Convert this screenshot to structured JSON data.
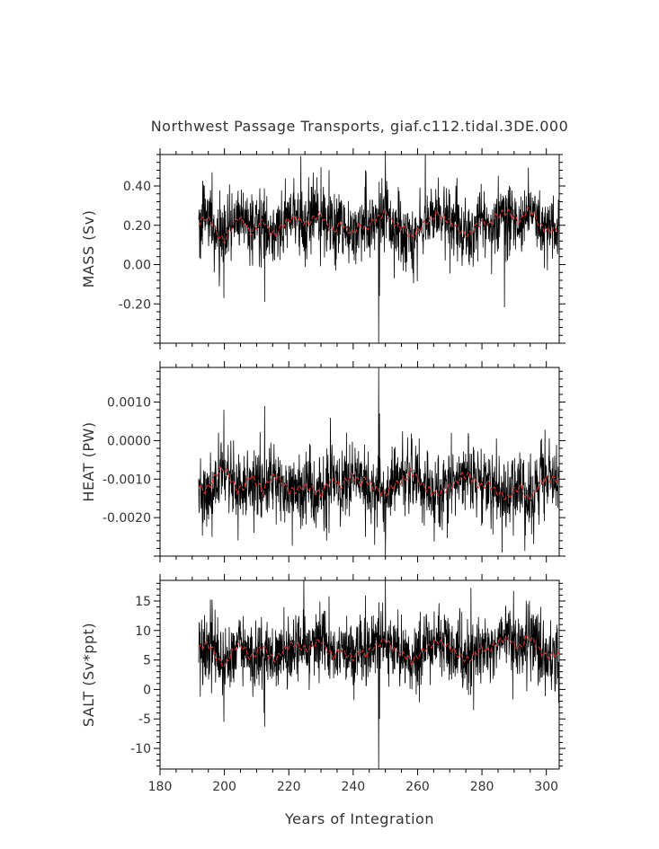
{
  "figure": {
    "title": "Northwest Passage Transports, giaf.c112.tidal.3DE.000",
    "xlabel": "Years of Integration"
  },
  "chart_data": [
    {
      "type": "line",
      "panel": "mass",
      "title": "Northwest Passage Transports, giaf.c112.tidal.3DE.000",
      "ylabel": "MASS (Sv)",
      "xlim": [
        180,
        304
      ],
      "ylim": [
        -0.4,
        0.56
      ],
      "x_ticks": [
        180,
        200,
        220,
        240,
        260,
        280,
        300
      ],
      "y_ticks": [
        -0.2,
        0.0,
        0.2,
        0.4
      ],
      "y_tick_labels": [
        "-0.20",
        "0.00",
        "0.20",
        "0.40"
      ],
      "x_start": 192,
      "x_end": 304,
      "spike_x": 248,
      "series": [
        {
          "color": "#000000",
          "role": "monthly",
          "mean": 0.21,
          "spread": 0.085,
          "extremes": [
            {
              "x": 247.9,
              "y": -0.4
            },
            {
              "x": 250.0,
              "y": 0.56
            },
            {
              "x": 199.8,
              "y": -0.17
            },
            {
              "x": 212.5,
              "y": -0.19
            },
            {
              "x": 248.2,
              "y": -0.16
            },
            {
              "x": 196.2,
              "y": 0.47
            },
            {
              "x": 232.5,
              "y": 0.48
            },
            {
              "x": 243.8,
              "y": 0.48
            }
          ]
        },
        {
          "color": "#e03030",
          "role": "annual-mean",
          "x": [
            192,
            194,
            196,
            198,
            200,
            202,
            204,
            206,
            208,
            210,
            212,
            214,
            216,
            218,
            220,
            222,
            224,
            226,
            228,
            230,
            232,
            234,
            236,
            238,
            240,
            242,
            244,
            246,
            248,
            250,
            252,
            254,
            256,
            258,
            260,
            262,
            264,
            266,
            268,
            270,
            272,
            274,
            276,
            278,
            280,
            282,
            284,
            286,
            288,
            290,
            292,
            294,
            296,
            298,
            300,
            302,
            304
          ],
          "y": [
            0.21,
            0.24,
            0.22,
            0.15,
            0.12,
            0.18,
            0.24,
            0.22,
            0.16,
            0.19,
            0.23,
            0.17,
            0.15,
            0.2,
            0.23,
            0.24,
            0.22,
            0.21,
            0.24,
            0.26,
            0.2,
            0.17,
            0.21,
            0.18,
            0.16,
            0.2,
            0.18,
            0.22,
            0.24,
            0.27,
            0.22,
            0.2,
            0.18,
            0.14,
            0.17,
            0.21,
            0.23,
            0.26,
            0.24,
            0.22,
            0.19,
            0.16,
            0.15,
            0.19,
            0.22,
            0.2,
            0.24,
            0.26,
            0.27,
            0.24,
            0.22,
            0.28,
            0.26,
            0.2,
            0.17,
            0.18,
            0.18
          ]
        }
      ]
    },
    {
      "type": "line",
      "panel": "heat",
      "ylabel": "HEAT (PW)",
      "xlim": [
        180,
        304
      ],
      "ylim": [
        -0.003,
        0.0019
      ],
      "x_ticks": [
        180,
        200,
        220,
        240,
        260,
        280,
        300
      ],
      "y_ticks": [
        -0.002,
        -0.001,
        0.0,
        0.001
      ],
      "y_tick_labels": [
        "-0.0020",
        "-0.0010",
        "0.0000",
        "0.0010"
      ],
      "x_start": 192,
      "x_end": 304,
      "spike_x": 248,
      "series": [
        {
          "color": "#000000",
          "role": "monthly",
          "mean": -0.00112,
          "spread": 0.00048,
          "extremes": [
            {
              "x": 247.9,
              "y": 0.0019
            },
            {
              "x": 250.0,
              "y": -0.003
            },
            {
              "x": 199.8,
              "y": 0.0008
            },
            {
              "x": 212.5,
              "y": 0.0009
            },
            {
              "x": 248.2,
              "y": 0.0007
            },
            {
              "x": 196.2,
              "y": -0.0025
            },
            {
              "x": 232.5,
              "y": -0.0024
            },
            {
              "x": 243.8,
              "y": -0.0025
            }
          ]
        },
        {
          "color": "#e03030",
          "role": "annual-mean",
          "x": [
            192,
            194,
            196,
            198,
            200,
            202,
            204,
            206,
            208,
            210,
            212,
            214,
            216,
            218,
            220,
            222,
            224,
            226,
            228,
            230,
            232,
            234,
            236,
            238,
            240,
            242,
            244,
            246,
            248,
            250,
            252,
            254,
            256,
            258,
            260,
            262,
            264,
            266,
            268,
            270,
            272,
            274,
            276,
            278,
            280,
            282,
            284,
            286,
            288,
            290,
            292,
            294,
            296,
            298,
            300,
            302,
            304
          ],
          "y": [
            -0.0012,
            -0.0013,
            -0.0011,
            -0.0008,
            -0.0007,
            -0.001,
            -0.0013,
            -0.0012,
            -0.0009,
            -0.0011,
            -0.0013,
            -0.001,
            -0.0009,
            -0.0011,
            -0.0013,
            -0.0013,
            -0.0012,
            -0.0012,
            -0.0013,
            -0.0014,
            -0.0011,
            -0.001,
            -0.0012,
            -0.001,
            -0.0009,
            -0.0011,
            -0.001,
            -0.0012,
            -0.0013,
            -0.0014,
            -0.0012,
            -0.0011,
            -0.001,
            -0.0008,
            -0.001,
            -0.0012,
            -0.0013,
            -0.0014,
            -0.0013,
            -0.0012,
            -0.0011,
            -0.0009,
            -0.0009,
            -0.0011,
            -0.0012,
            -0.0011,
            -0.0013,
            -0.0014,
            -0.0015,
            -0.0013,
            -0.0012,
            -0.0015,
            -0.0014,
            -0.0011,
            -0.001,
            -0.001,
            -0.001
          ]
        }
      ]
    },
    {
      "type": "line",
      "panel": "salt",
      "ylabel": "SALT (Sv*ppt)",
      "xlim": [
        180,
        304
      ],
      "ylim": [
        -13.5,
        18.5
      ],
      "x_ticks": [
        180,
        200,
        220,
        240,
        260,
        280,
        300
      ],
      "x_tick_labels": [
        "180",
        "200",
        "220",
        "240",
        "260",
        "280",
        "300"
      ],
      "y_ticks": [
        -10,
        -5,
        0,
        5,
        10,
        15
      ],
      "y_tick_labels": [
        "-10",
        "-5",
        "0",
        "5",
        "10",
        "15"
      ],
      "x_start": 192,
      "x_end": 304,
      "spike_x": 248,
      "series": [
        {
          "color": "#000000",
          "role": "monthly",
          "mean": 6.7,
          "spread": 2.8,
          "extremes": [
            {
              "x": 247.9,
              "y": -13.5
            },
            {
              "x": 250.0,
              "y": 18.5
            },
            {
              "x": 199.8,
              "y": -5.5
            },
            {
              "x": 212.5,
              "y": -6.3
            },
            {
              "x": 248.2,
              "y": -5.0
            },
            {
              "x": 196.2,
              "y": 15.2
            },
            {
              "x": 232.5,
              "y": 15.8
            },
            {
              "x": 243.8,
              "y": 15.9
            }
          ]
        },
        {
          "color": "#e03030",
          "role": "annual-mean",
          "x": [
            192,
            194,
            196,
            198,
            200,
            202,
            204,
            206,
            208,
            210,
            212,
            214,
            216,
            218,
            220,
            222,
            224,
            226,
            228,
            230,
            232,
            234,
            236,
            238,
            240,
            242,
            244,
            246,
            248,
            250,
            252,
            254,
            256,
            258,
            260,
            262,
            264,
            266,
            268,
            270,
            272,
            274,
            276,
            278,
            280,
            282,
            284,
            286,
            288,
            290,
            292,
            294,
            296,
            298,
            300,
            302,
            304
          ],
          "y": [
            6.8,
            7.7,
            7.1,
            5.0,
            4.0,
            5.9,
            7.7,
            7.1,
            5.3,
            6.2,
            7.4,
            5.6,
            5.0,
            6.5,
            7.4,
            7.7,
            7.1,
            6.8,
            7.7,
            8.3,
            6.5,
            5.6,
            6.8,
            5.9,
            5.3,
            6.5,
            5.9,
            7.1,
            7.7,
            8.6,
            7.1,
            6.5,
            5.9,
            4.7,
            5.6,
            6.8,
            7.4,
            8.3,
            7.7,
            7.1,
            6.2,
            5.3,
            5.0,
            6.2,
            7.1,
            6.5,
            7.7,
            8.3,
            8.6,
            7.7,
            7.1,
            8.9,
            8.3,
            6.5,
            5.6,
            5.9,
            5.9
          ]
        }
      ]
    }
  ]
}
